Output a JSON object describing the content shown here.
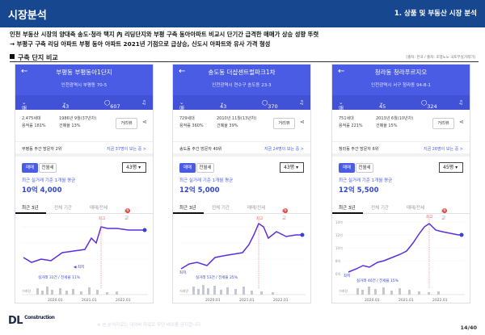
{
  "header": {
    "title": "시장분석",
    "section": "1. 상품 및 부동산 시장 분석"
  },
  "summary": {
    "line1": "인천 부동산 시장의 양대축 송도·청라 택지 內 리딩단지와 부평 구축 동아아파트 비교시 단기간 급격한 매매가 상승 성향 뚜렷",
    "line2": "→ 부평구 구축 리딩 아파트 부평 동아 아파트 2021년 기점으로 급상승, 신도시 아파트와 유사 가격 형성"
  },
  "subhead": "구축 단지 비교",
  "source_note": "[출처: 한국 / 출처: 호갱노노 국토부실거래가]",
  "phones": [
    {
      "name": "부평동 부평동아1단지",
      "address": "인천광역시 부평동 70-5",
      "deal_tab": "매매",
      "size_tab": "43평",
      "comments": "607",
      "households": "2,475세대",
      "far": "용적률 181%",
      "built": "1986년 9월(37년차)",
      "bcr": "건폐율 13%",
      "distance_button": "거리뷰",
      "weekly": "부평동 주간 방문자 2위",
      "weekly_link": "지금 37명이 보는 중 >",
      "seg_sale": "매매",
      "seg_jeonse": "전월세",
      "dropdown": "43평",
      "price_caption": "최근 실거래 기준 1개월 평균",
      "price": "10억 4,000",
      "period_tabs": [
        "최근 3년",
        "전체 기간",
        "매매/전세",
        "비교"
      ],
      "chart": {
        "peak_label": "최고",
        "low_label": "최저",
        "volume_caption": "실거래 31건 / 전세율 11%",
        "x_labels": [
          "2020.01",
          "2021.01",
          "2022.01"
        ],
        "volume_label": "거래량"
      }
    },
    {
      "name": "송도동 더샵센트럴파크1차",
      "address": "인천광역시 연수구 송도동 23-3",
      "deal_tab": "매매",
      "size_tab": "43평",
      "comments": "370",
      "households": "729세대",
      "far": "용적률 360%",
      "built": "2010년 11월(13년차)",
      "bcr": "건폐율 39%",
      "distance_button": "거리뷰",
      "weekly": "송도동 주간 방문자 40위",
      "weekly_link": "지금 24명이 보는 중 >",
      "seg_sale": "매매",
      "seg_jeonse": "전월세",
      "dropdown": "43평",
      "price_caption": "최근 실거래 기준 1개월 평균",
      "price": "12억 5,000",
      "period_tabs": [
        "최근 3년",
        "전체 기간",
        "매매/전세",
        "비교"
      ],
      "chart": {
        "peak_label": "최고",
        "low_label": "최저",
        "volume_caption": "실거래 53건 / 전세율 25%",
        "x_labels": [
          "2020.01",
          "2021.01",
          "2022.01"
        ],
        "volume_label": "거래량"
      }
    },
    {
      "name": "청라동 청라푸르지오",
      "address": "인천광역시 서구 청라동 94-8-1",
      "deal_tab": "매매",
      "size_tab": "45평",
      "comments": "324",
      "households": "751세대",
      "far": "용적률 221%",
      "built": "2013년 6월(10년차)",
      "bcr": "건폐율 15%",
      "distance_button": "거리뷰",
      "weekly": "청라동 주간 방문자 6위",
      "weekly_link": "지금 26명이 보는 중 >",
      "seg_sale": "매매",
      "seg_jeonse": "전월세",
      "dropdown": "45평",
      "price_caption": "최근 실거래 기준 1개월 평균",
      "price": "12억 5,500",
      "period_tabs": [
        "최근 3년",
        "전체 기간",
        "매매/전세",
        "비교"
      ],
      "chart": {
        "y_ticks": [
          "14억",
          "12억",
          "10억",
          "8억",
          "6억"
        ],
        "peak_label": "최고",
        "low_label": "최저",
        "volume_caption": "실거래 40건 / 전세율 15%",
        "x_labels": [
          "2020.01",
          "2021.01",
          "2022.01"
        ],
        "volume_label": "거래량"
      }
    }
  ],
  "footer": {
    "logo": "DL",
    "logo_sub": "Construction",
    "note": "※ 본 분석자료는 대외비 자료로 무단 배포를 금지합니다.",
    "page": "14/40"
  }
}
